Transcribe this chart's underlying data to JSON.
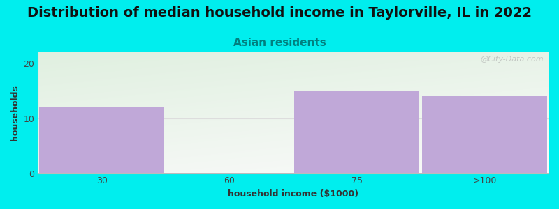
{
  "title": "Distribution of median household income in Taylorville, IL in 2022",
  "subtitle": "Asian residents",
  "xlabel": "household income ($1000)",
  "ylabel": "households",
  "categories": [
    "30",
    "60",
    "75",
    ">100"
  ],
  "values": [
    12,
    0,
    15,
    14
  ],
  "bar_color": "#c0a8d8",
  "ylim": [
    0,
    22
  ],
  "yticks": [
    0,
    10,
    20
  ],
  "background_color": "#00eeee",
  "gradient_top_left": "#e0f0e0",
  "gradient_bottom_right": "#f8f8f8",
  "title_fontsize": 14,
  "subtitle_fontsize": 11,
  "subtitle_color": "#008080",
  "axis_label_fontsize": 9,
  "tick_fontsize": 9,
  "watermark": "@City-Data.com"
}
